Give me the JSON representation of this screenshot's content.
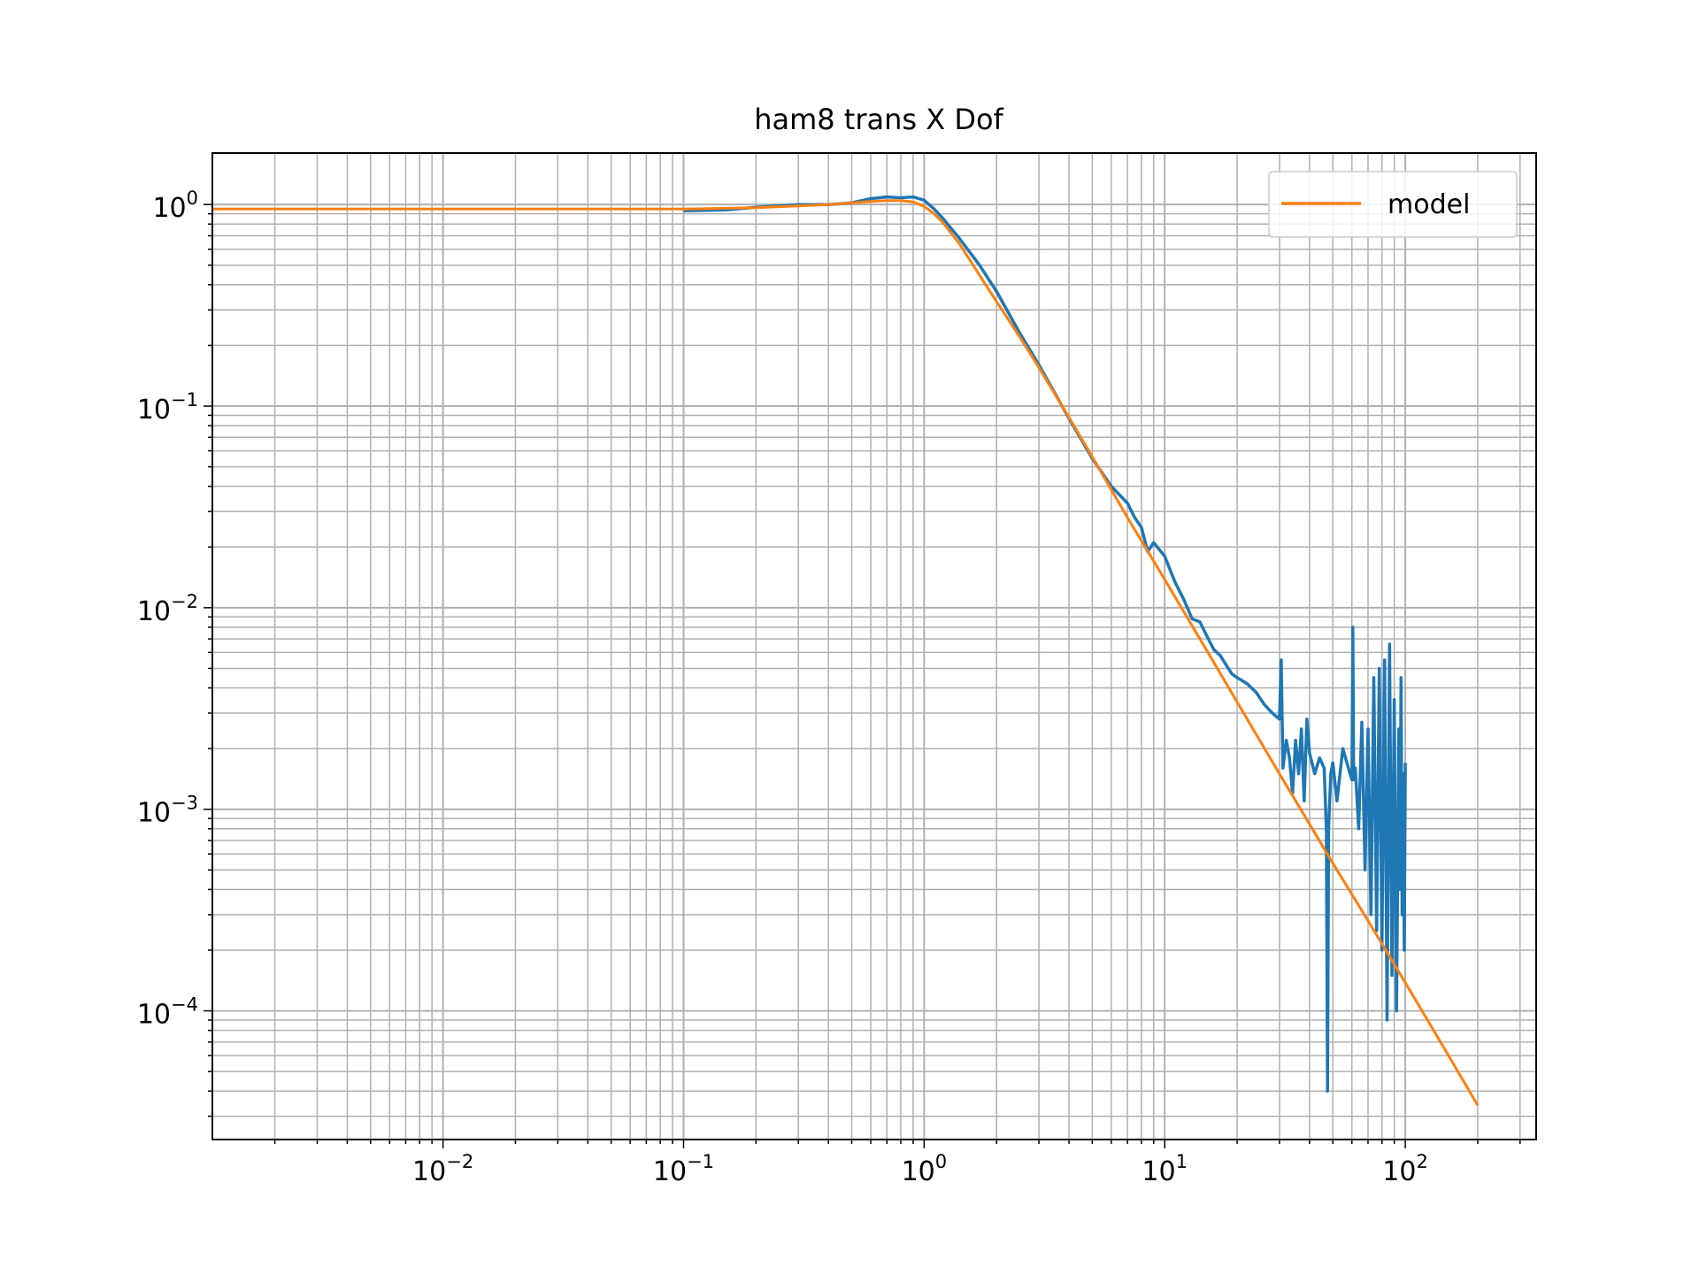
{
  "chart_data": {
    "type": "line",
    "title": "ham8 trans X Dof",
    "xlabel": "",
    "ylabel": "",
    "xscale": "log",
    "yscale": "log",
    "xlim": [
      0.0011,
      350
    ],
    "ylim": [
      2.3e-05,
      1.8
    ],
    "grid": "on (major and minor)",
    "legend_position": "top-right",
    "x_ticks": [
      {
        "value": 0.01,
        "base": "10",
        "exp": "−2"
      },
      {
        "value": 0.1,
        "base": "10",
        "exp": "−1"
      },
      {
        "value": 1,
        "base": "10",
        "exp": "0"
      },
      {
        "value": 10,
        "base": "10",
        "exp": "1"
      },
      {
        "value": 100,
        "base": "10",
        "exp": "2"
      }
    ],
    "y_ticks": [
      {
        "value": 1,
        "base": "10",
        "exp": "0"
      },
      {
        "value": 0.1,
        "base": "10",
        "exp": "−1"
      },
      {
        "value": 0.01,
        "base": "10",
        "exp": "−2"
      },
      {
        "value": 0.001,
        "base": "10",
        "exp": "−3"
      },
      {
        "value": 0.0001,
        "base": "10",
        "exp": "−4"
      }
    ],
    "series": [
      {
        "name": "",
        "color": "#1f77b4",
        "x": [
          0.1,
          0.15,
          0.2,
          0.3,
          0.4,
          0.5,
          0.6,
          0.7,
          0.8,
          0.9,
          1.0,
          1.1,
          1.2,
          1.4,
          1.7,
          2.0,
          2.5,
          3.0,
          4.0,
          5.0,
          6.0,
          7.0,
          7.5,
          8.0,
          8.5,
          9.0,
          10,
          11,
          12,
          13,
          14,
          15,
          16,
          17,
          18,
          19,
          20,
          22,
          24,
          26,
          28,
          30,
          30.5,
          31,
          32,
          33,
          34,
          35,
          36,
          37,
          38,
          39,
          40,
          42,
          44,
          46,
          47,
          47.5,
          48,
          49,
          50,
          52,
          55,
          58,
          60,
          60.5,
          61,
          62,
          64,
          66,
          68,
          70,
          72,
          74,
          76,
          78,
          80,
          82,
          84,
          86,
          88,
          90,
          92,
          94,
          95,
          96,
          97,
          98,
          99,
          100
        ],
        "y": [
          0.93,
          0.94,
          0.97,
          1.0,
          1.0,
          1.02,
          1.07,
          1.09,
          1.08,
          1.09,
          1.05,
          0.95,
          0.85,
          0.68,
          0.5,
          0.37,
          0.23,
          0.16,
          0.087,
          0.055,
          0.04,
          0.033,
          0.028,
          0.025,
          0.019,
          0.021,
          0.018,
          0.0135,
          0.011,
          0.0088,
          0.0085,
          0.0072,
          0.0062,
          0.0058,
          0.0052,
          0.0047,
          0.0045,
          0.0042,
          0.0038,
          0.0033,
          0.003,
          0.0028,
          0.0055,
          0.0016,
          0.0022,
          0.0018,
          0.0012,
          0.0022,
          0.0015,
          0.0025,
          0.0011,
          0.0028,
          0.0019,
          0.0015,
          0.0018,
          0.0016,
          0.0008,
          4e-05,
          0.0008,
          0.0015,
          0.0017,
          0.0011,
          0.002,
          0.0016,
          0.0014,
          0.008,
          0.0014,
          0.0016,
          0.0008,
          0.0027,
          0.0005,
          0.0025,
          0.0003,
          0.0045,
          0.00025,
          0.005,
          0.0002,
          0.0055,
          9e-05,
          0.0066,
          0.00015,
          0.0035,
          0.0001,
          0.0025,
          0.0004,
          0.0045,
          0.0003,
          0.0015,
          0.0002,
          0.0017
        ]
      },
      {
        "name": "model",
        "color": "#ff7f0e",
        "x": [
          0.0011,
          0.01,
          0.1,
          0.2,
          0.3,
          0.4,
          0.5,
          0.6,
          0.7,
          0.8,
          0.9,
          1.0,
          1.1,
          1.2,
          1.4,
          1.6,
          1.8,
          2.0,
          2.5,
          3.0,
          4.0,
          5.0,
          7.0,
          10,
          15,
          20,
          30,
          50,
          70,
          100,
          150,
          200
        ],
        "y": [
          0.95,
          0.95,
          0.95,
          0.965,
          0.985,
          1.0,
          1.02,
          1.035,
          1.045,
          1.045,
          1.03,
          0.98,
          0.9,
          0.81,
          0.64,
          0.5,
          0.4,
          0.33,
          0.22,
          0.155,
          0.088,
          0.056,
          0.028,
          0.0138,
          0.0061,
          0.0034,
          0.0015,
          0.00054,
          0.00028,
          0.000138,
          6.1e-05,
          3.4e-05
        ]
      }
    ]
  }
}
